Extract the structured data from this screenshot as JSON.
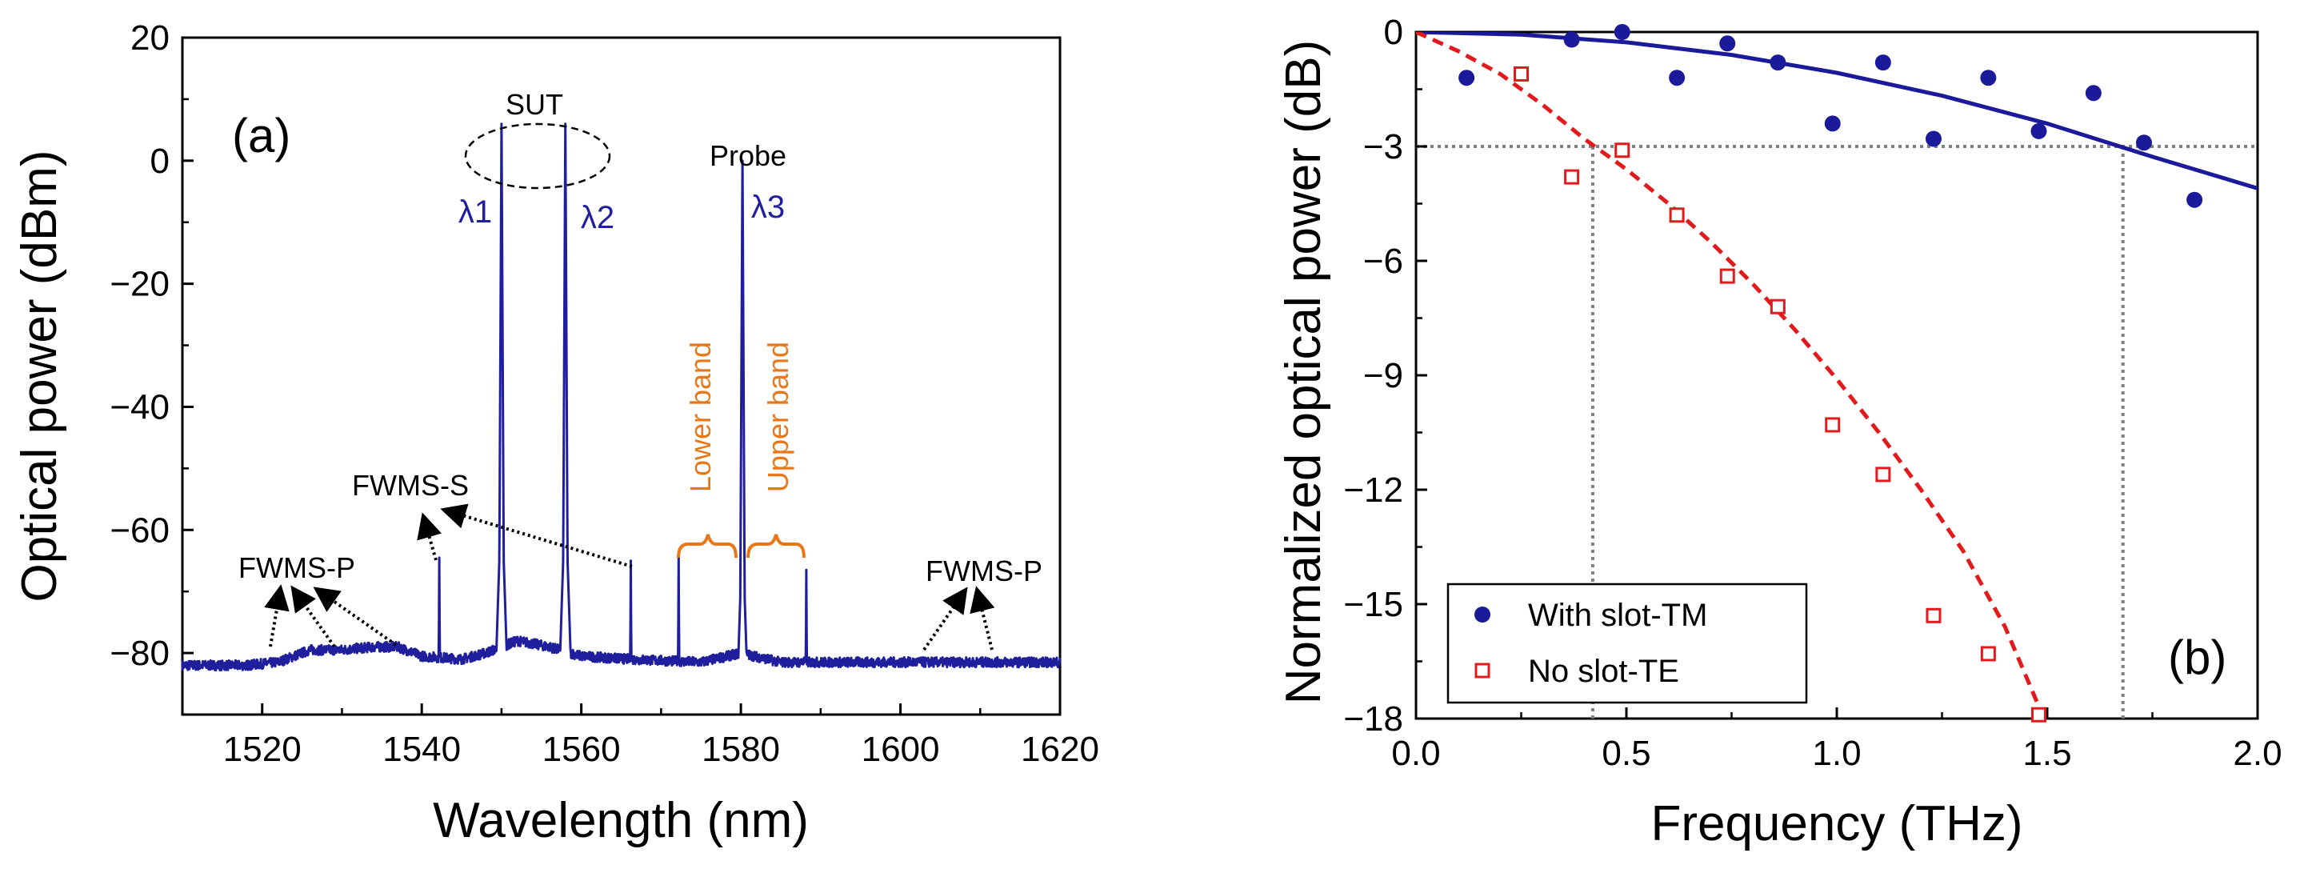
{
  "colors": {
    "spectrum": "#1f1f9e",
    "series_tm": "#1a1a9a",
    "series_te": "#e31a1c",
    "band_annotation": "#e87817",
    "guide": "#808080"
  },
  "chart_data": [
    {
      "type": "line",
      "panel_label": "(a)",
      "title": "",
      "xlabel": "Wavelength (nm)",
      "ylabel": "Optical power (dBm)",
      "xlim": [
        1510,
        1620
      ],
      "ylim": [
        -90,
        20
      ],
      "xticks": [
        1520,
        1540,
        1560,
        1580,
        1600,
        1620
      ],
      "yticks": [
        20,
        0,
        -20,
        -40,
        -60,
        -80
      ],
      "xtick_labels": [
        "1520",
        "1540",
        "1560",
        "1580",
        "1600",
        "1620"
      ],
      "ytick_labels": [
        "20",
        "0",
        "−20",
        "−40",
        "−60",
        "−80"
      ],
      "noise_floor_dbm": -81,
      "baseline": {
        "x": [
          1510,
          1518,
          1522,
          1526,
          1530,
          1534,
          1537,
          1540,
          1545,
          1548,
          1552,
          1556,
          1560,
          1566,
          1575,
          1580,
          1585,
          1595,
          1605,
          1620
        ],
        "y": [
          -82,
          -82,
          -81.5,
          -79.5,
          -79.5,
          -79,
          -79,
          -80.5,
          -81,
          -80,
          -78,
          -79,
          -80.5,
          -81,
          -81.5,
          -80,
          -81.5,
          -81.5,
          -81.5,
          -81.5
        ]
      },
      "peaks": [
        {
          "wavelength": 1550.0,
          "power": 6,
          "label": "λ1"
        },
        {
          "wavelength": 1558.0,
          "power": 6,
          "label": "λ2"
        },
        {
          "wavelength": 1580.2,
          "power": 0,
          "label": "λ3"
        },
        {
          "wavelength": 1542.2,
          "power": -64.5,
          "label": ""
        },
        {
          "wavelength": 1566.2,
          "power": -65,
          "label": ""
        },
        {
          "wavelength": 1572.2,
          "power": -64.5,
          "label": ""
        },
        {
          "wavelength": 1588.2,
          "power": -66.5,
          "label": ""
        }
      ],
      "annotations": {
        "sut": "SUT",
        "probe": "Probe",
        "fwm_ss": "FWMS-S",
        "fwm_sp_left": "FWMS-P",
        "fwm_sp_right": "FWMS-P",
        "lower_band": "Lower band",
        "upper_band": "Upper band"
      }
    },
    {
      "type": "scatter",
      "panel_label": "(b)",
      "title": "",
      "xlabel": "Frequency (THz)",
      "ylabel": "Normalized optical power (dB)",
      "xlim": [
        0.0,
        2.0
      ],
      "ylim": [
        -18,
        0
      ],
      "xticks": [
        0.0,
        0.5,
        1.0,
        1.5,
        2.0
      ],
      "yticks": [
        0,
        -3,
        -6,
        -9,
        -12,
        -15,
        -18
      ],
      "xtick_labels": [
        "0.0",
        "0.5",
        "1.0",
        "1.5",
        "2.0"
      ],
      "ytick_labels": [
        "0",
        "−3",
        "−6",
        "−9",
        "−12",
        "−15",
        "−18"
      ],
      "legend_position": "bottom-left",
      "three_db_line": -3,
      "bandwidth_markers_thz": [
        0.42,
        1.68
      ],
      "series": [
        {
          "name": "With slot-TM",
          "marker": "filled-circle",
          "x": [
            0.12,
            0.37,
            0.49,
            0.62,
            0.74,
            0.86,
            0.99,
            1.11,
            1.23,
            1.36,
            1.48,
            1.61,
            1.73,
            1.85
          ],
          "y": [
            -1.2,
            -0.2,
            0.0,
            -1.2,
            -0.3,
            -0.8,
            -2.4,
            -0.8,
            -2.8,
            -1.2,
            -2.6,
            -1.6,
            -2.9,
            -4.4
          ],
          "fit": {
            "style": "solid",
            "x": [
              0.0,
              0.25,
              0.5,
              0.75,
              1.0,
              1.25,
              1.5,
              1.75,
              2.0
            ],
            "y": [
              0.0,
              -0.07,
              -0.27,
              -0.6,
              -1.07,
              -1.67,
              -2.4,
              -3.27,
              -4.1
            ]
          }
        },
        {
          "name": "No slot-TE",
          "marker": "open-square",
          "x": [
            0.25,
            0.37,
            0.49,
            0.62,
            0.74,
            0.86,
            0.99,
            1.11,
            1.23,
            1.36,
            1.48
          ],
          "y": [
            -1.1,
            -3.8,
            -3.1,
            -4.8,
            -6.4,
            -7.2,
            -10.3,
            -11.6,
            -15.3,
            -16.3,
            -17.9
          ],
          "fit": {
            "style": "dashed",
            "x": [
              0.0,
              0.1,
              0.2,
              0.3,
              0.4,
              0.5,
              0.6,
              0.7,
              0.8,
              0.9,
              1.0,
              1.1,
              1.2,
              1.3,
              1.4,
              1.5
            ],
            "y": [
              0.0,
              -0.5,
              -1.1,
              -1.9,
              -2.8,
              -3.6,
              -4.5,
              -5.5,
              -6.6,
              -7.8,
              -9.1,
              -10.5,
              -12.0,
              -13.6,
              -15.6,
              -18.2
            ]
          }
        }
      ]
    }
  ]
}
